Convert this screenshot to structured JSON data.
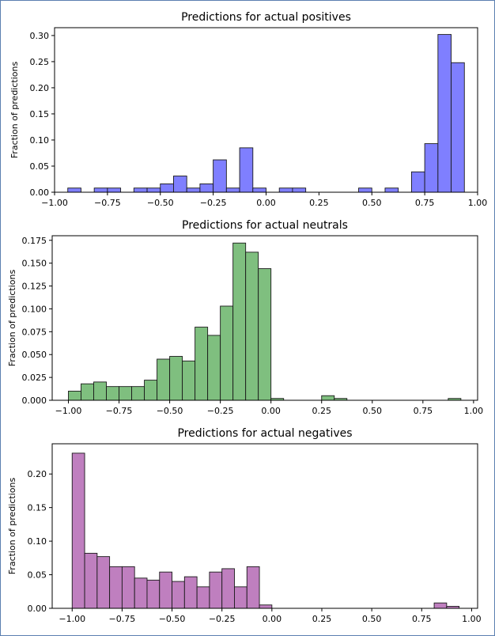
{
  "chart_data": [
    {
      "type": "bar",
      "title": "Predictions for actual positives",
      "ylabel": "Fraction of predictions",
      "xlabel": "",
      "xlim": [
        -1.0,
        1.0
      ],
      "ylim": [
        0,
        0.315
      ],
      "xticks": [
        "−1.00",
        "−0.75",
        "−0.50",
        "−0.25",
        "0.00",
        "0.25",
        "0.50",
        "0.75",
        "1.00"
      ],
      "xtick_values": [
        -1.0,
        -0.75,
        -0.5,
        -0.25,
        0.0,
        0.25,
        0.5,
        0.75,
        1.0
      ],
      "yticks": [
        "0.00",
        "0.05",
        "0.10",
        "0.15",
        "0.20",
        "0.25",
        "0.30"
      ],
      "ytick_values": [
        0,
        0.05,
        0.1,
        0.15,
        0.2,
        0.25,
        0.3
      ],
      "color": "#7f7fff",
      "bin_width": 0.0625,
      "bins": [
        {
          "x": -0.9375,
          "y": 0.008
        },
        {
          "x": -0.8125,
          "y": 0.008
        },
        {
          "x": -0.75,
          "y": 0.008
        },
        {
          "x": -0.625,
          "y": 0.008
        },
        {
          "x": -0.5625,
          "y": 0.008
        },
        {
          "x": -0.5,
          "y": 0.016
        },
        {
          "x": -0.4375,
          "y": 0.031
        },
        {
          "x": -0.375,
          "y": 0.008
        },
        {
          "x": -0.3125,
          "y": 0.016
        },
        {
          "x": -0.25,
          "y": 0.062
        },
        {
          "x": -0.1875,
          "y": 0.008
        },
        {
          "x": -0.125,
          "y": 0.085
        },
        {
          "x": -0.0625,
          "y": 0.008
        },
        {
          "x": 0.0625,
          "y": 0.008
        },
        {
          "x": 0.125,
          "y": 0.008
        },
        {
          "x": 0.4375,
          "y": 0.008
        },
        {
          "x": 0.5625,
          "y": 0.008
        },
        {
          "x": 0.6875,
          "y": 0.039
        },
        {
          "x": 0.75,
          "y": 0.093
        },
        {
          "x": 0.8125,
          "y": 0.302
        },
        {
          "x": 0.875,
          "y": 0.248
        }
      ]
    },
    {
      "type": "bar",
      "title": "Predictions for actual neutrals",
      "ylabel": "Fraction of predictions",
      "xlabel": "",
      "xlim": [
        -1.08,
        1.02
      ],
      "ylim": [
        0,
        0.18
      ],
      "xticks": [
        "−1.00",
        "−0.75",
        "−0.50",
        "−0.25",
        "0.00",
        "0.25",
        "0.50",
        "0.75",
        "1.00"
      ],
      "xtick_values": [
        -1.0,
        -0.75,
        -0.5,
        -0.25,
        0.0,
        0.25,
        0.5,
        0.75,
        1.0
      ],
      "yticks": [
        "0.000",
        "0.025",
        "0.050",
        "0.075",
        "0.100",
        "0.125",
        "0.150",
        "0.175"
      ],
      "ytick_values": [
        0,
        0.025,
        0.05,
        0.075,
        0.1,
        0.125,
        0.15,
        0.175
      ],
      "color": "#7fbf7f",
      "bin_width": 0.0625,
      "bins": [
        {
          "x": -1.0,
          "y": 0.01
        },
        {
          "x": -0.9375,
          "y": 0.018
        },
        {
          "x": -0.875,
          "y": 0.02
        },
        {
          "x": -0.8125,
          "y": 0.015
        },
        {
          "x": -0.75,
          "y": 0.015
        },
        {
          "x": -0.6875,
          "y": 0.015
        },
        {
          "x": -0.625,
          "y": 0.022
        },
        {
          "x": -0.5625,
          "y": 0.045
        },
        {
          "x": -0.5,
          "y": 0.048
        },
        {
          "x": -0.4375,
          "y": 0.043
        },
        {
          "x": -0.375,
          "y": 0.08
        },
        {
          "x": -0.3125,
          "y": 0.071
        },
        {
          "x": -0.25,
          "y": 0.103
        },
        {
          "x": -0.1875,
          "y": 0.172
        },
        {
          "x": -0.125,
          "y": 0.162
        },
        {
          "x": -0.0625,
          "y": 0.144
        },
        {
          "x": 0.0,
          "y": 0.002
        },
        {
          "x": 0.25,
          "y": 0.005
        },
        {
          "x": 0.3125,
          "y": 0.002
        },
        {
          "x": 0.875,
          "y": 0.002
        }
      ]
    },
    {
      "type": "bar",
      "title": "Predictions for actual negatives",
      "ylabel": "Fraction of predictions",
      "xlabel": "",
      "xlim": [
        -1.1,
        1.03
      ],
      "ylim": [
        0,
        0.245
      ],
      "xticks": [
        "−1.00",
        "−0.75",
        "−0.50",
        "−0.25",
        "0.00",
        "0.25",
        "0.50",
        "0.75",
        "1.00"
      ],
      "xtick_values": [
        -1.0,
        -0.75,
        -0.5,
        -0.25,
        0.0,
        0.25,
        0.5,
        0.75,
        1.0
      ],
      "yticks": [
        "0.00",
        "0.05",
        "0.10",
        "0.15",
        "0.20"
      ],
      "ytick_values": [
        0,
        0.05,
        0.1,
        0.15,
        0.2
      ],
      "color": "#bf7fbf",
      "bin_width": 0.0625,
      "bins": [
        {
          "x": -1.0,
          "y": 0.231
        },
        {
          "x": -0.9375,
          "y": 0.082
        },
        {
          "x": -0.875,
          "y": 0.077
        },
        {
          "x": -0.8125,
          "y": 0.062
        },
        {
          "x": -0.75,
          "y": 0.062
        },
        {
          "x": -0.6875,
          "y": 0.045
        },
        {
          "x": -0.625,
          "y": 0.042
        },
        {
          "x": -0.5625,
          "y": 0.054
        },
        {
          "x": -0.5,
          "y": 0.04
        },
        {
          "x": -0.4375,
          "y": 0.047
        },
        {
          "x": -0.375,
          "y": 0.032
        },
        {
          "x": -0.3125,
          "y": 0.054
        },
        {
          "x": -0.25,
          "y": 0.059
        },
        {
          "x": -0.1875,
          "y": 0.032
        },
        {
          "x": -0.125,
          "y": 0.062
        },
        {
          "x": -0.0625,
          "y": 0.005
        },
        {
          "x": 0.8125,
          "y": 0.008
        },
        {
          "x": 0.875,
          "y": 0.003
        }
      ]
    }
  ]
}
